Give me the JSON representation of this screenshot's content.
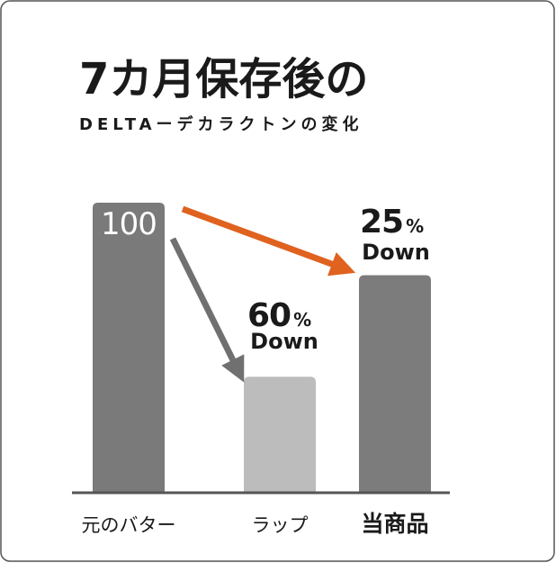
{
  "chart_data": {
    "type": "bar",
    "title": "7カ月保存後の",
    "subtitle": "DELTAーデカラクトンの変化",
    "categories": [
      "元のバター",
      "ラップ",
      "当商品"
    ],
    "values": [
      100,
      40,
      75
    ],
    "colors": [
      "#7a7a7a",
      "#bcbcbc",
      "#7c7c7c"
    ],
    "ylim": [
      0,
      100
    ],
    "annotations": [
      {
        "number": "60",
        "unit": "%",
        "text": "Down",
        "arrow_color": "#707070"
      },
      {
        "number": "25",
        "unit": "%",
        "text": "Down",
        "arrow_color": "#e0621f"
      }
    ]
  }
}
